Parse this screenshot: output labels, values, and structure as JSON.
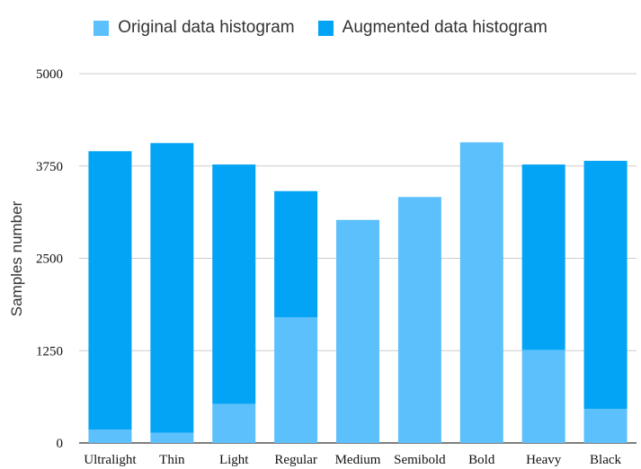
{
  "chart_data": {
    "type": "bar",
    "stacked": true,
    "title": "",
    "xlabel": "",
    "ylabel": "Samples number",
    "ylim": [
      0,
      5000
    ],
    "yticks": [
      0,
      1250,
      2500,
      3750,
      5000
    ],
    "grid": true,
    "legend_placement": "top-center",
    "categories": [
      "Ultralight",
      "Thin",
      "Light",
      "Regular",
      "Medium",
      "Semibold",
      "Bold",
      "Heavy",
      "Black"
    ],
    "series": [
      {
        "name": "Original data histogram",
        "color": "#5bc0fb",
        "values": [
          180,
          140,
          530,
          1700,
          3020,
          3330,
          4070,
          1260,
          460
        ]
      },
      {
        "name": "Augmented data histogram",
        "color": "#03a3f6",
        "values": [
          3770,
          3920,
          3240,
          1710,
          0,
          0,
          0,
          2510,
          3360
        ]
      }
    ]
  }
}
